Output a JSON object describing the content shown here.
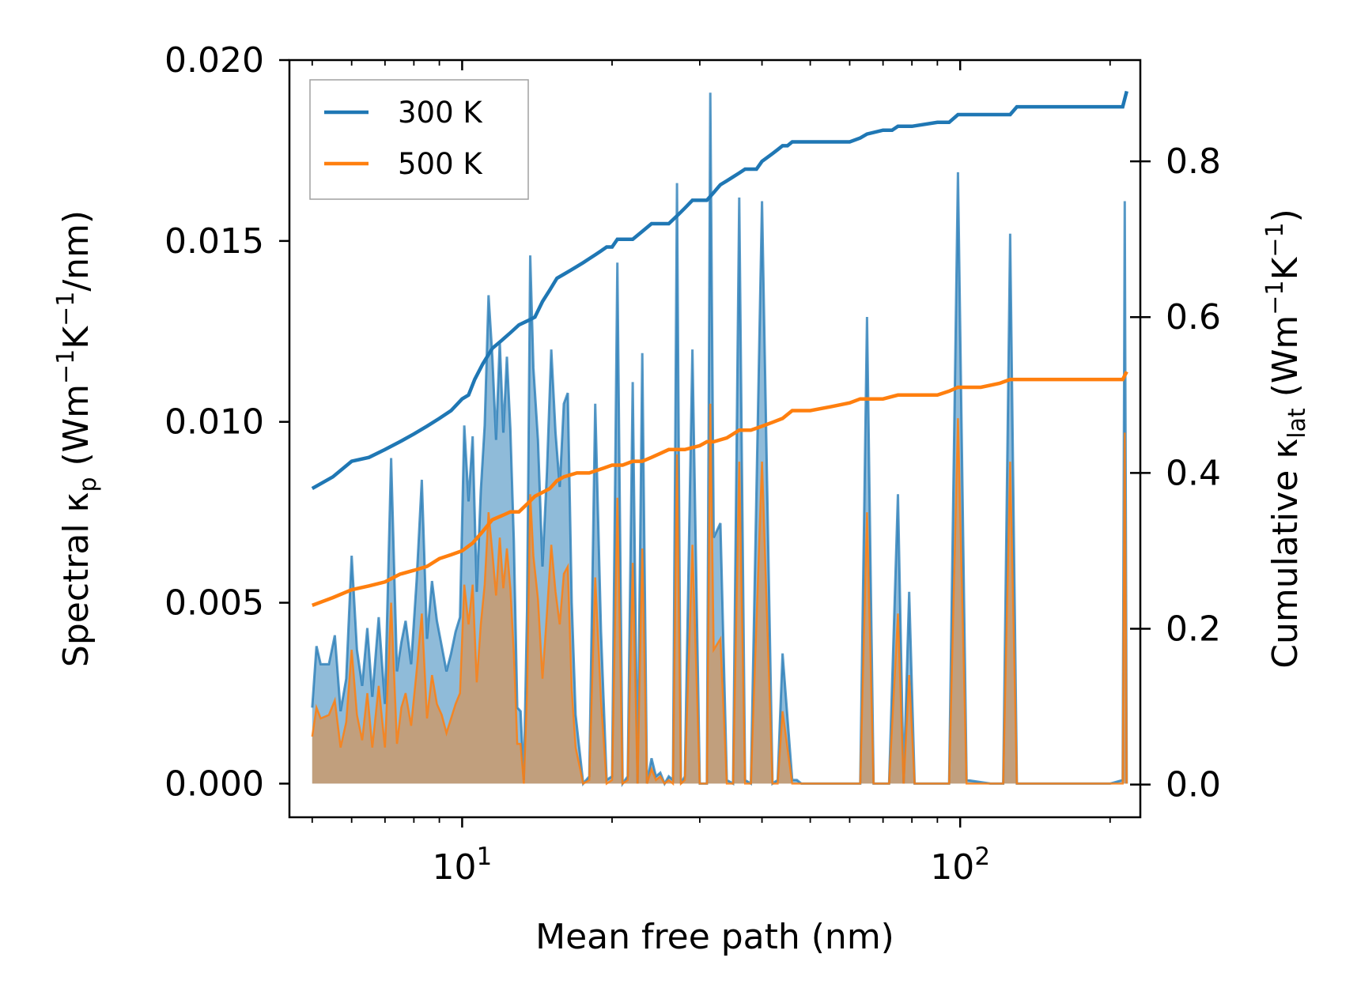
{
  "chart_data": {
    "type": "line",
    "title": "",
    "xlabel": "Mean free path (nm)",
    "xscale": "log",
    "xlim": [
      4.5,
      230
    ],
    "ylabel_left": {
      "prefix": "Spectral κ",
      "sub": "p",
      "unit_open": " (Wm",
      "exp1": "−1",
      "unit_mid": "K",
      "exp2": "−1",
      "unit_close": "/nm)"
    },
    "ylabel_right": {
      "prefix": "Cumulative κ",
      "sub": "lat",
      "unit_open": " (Wm",
      "exp1": "−1",
      "unit_mid": "K",
      "exp2": "−1",
      "unit_close": ")"
    },
    "ylim_left": [
      -0.00093,
      0.02
    ],
    "ylim_right": [
      -0.042,
      0.93
    ],
    "yticks_left": [
      "0.000",
      "0.005",
      "0.010",
      "0.015",
      "0.020"
    ],
    "yticks_left_values": [
      0,
      0.005,
      0.01,
      0.015,
      0.02
    ],
    "yticks_right": [
      "0.0",
      "0.2",
      "0.4",
      "0.6",
      "0.8"
    ],
    "yticks_right_values": [
      0,
      0.2,
      0.4,
      0.6,
      0.8
    ],
    "xticks": [
      {
        "base": "10",
        "exp": "1",
        "value": 10
      },
      {
        "base": "10",
        "exp": "2",
        "value": 100
      }
    ],
    "legend": {
      "placement": "top-left",
      "entries": [
        "300 K",
        "500 K"
      ]
    },
    "colors": {
      "c300": "#1f77b4",
      "c500": "#ff7f0e",
      "fill300": "#1f77b4",
      "fill500": "#ff7f0e"
    },
    "series": [
      {
        "name": "300 K",
        "color": "#1f77b4",
        "spectral": {
          "x": [
            5.0,
            5.1,
            5.2,
            5.4,
            5.55,
            5.7,
            5.85,
            6.0,
            6.15,
            6.3,
            6.45,
            6.6,
            6.8,
            7.0,
            7.2,
            7.4,
            7.55,
            7.7,
            7.9,
            8.1,
            8.3,
            8.5,
            8.7,
            8.9,
            9.1,
            9.3,
            9.5,
            9.7,
            9.9,
            10.1,
            10.3,
            10.5,
            10.7,
            10.9,
            11.1,
            11.3,
            11.5,
            11.7,
            11.9,
            12.1,
            12.3,
            12.5,
            12.7,
            12.9,
            13.1,
            13.3,
            13.5,
            13.7,
            13.9,
            14.2,
            14.5,
            14.8,
            15.1,
            15.4,
            15.7,
            16.0,
            16.3,
            16.6,
            16.9,
            17.5,
            18.0,
            18.5,
            19.0,
            19.5,
            20.0,
            20.5,
            21.0,
            21.5,
            22.0,
            22.5,
            23.0,
            23.5,
            24.0,
            24.5,
            25.0,
            25.5,
            26.0,
            26.5,
            27.0,
            27.5,
            28.0,
            29.0,
            30.0,
            31.0,
            31.5,
            32.0,
            33.0,
            34.0,
            35.0,
            36.0,
            37.0,
            38.0,
            40.0,
            42.0,
            43.0,
            44.0,
            46.0,
            47.0,
            48.0,
            50.0,
            55.0,
            60.0,
            63.0,
            65.0,
            67.0,
            72.0,
            75.0,
            77.0,
            79.0,
            81.0,
            90.0,
            95.0,
            99.0,
            103.0,
            115.0,
            122.0,
            126.0,
            130.0,
            150.0,
            180.0,
            200.0,
            212.0,
            214.0,
            216.0
          ],
          "values": [
            0.0021,
            0.0038,
            0.0033,
            0.0033,
            0.0041,
            0.002,
            0.0029,
            0.0063,
            0.0037,
            0.0027,
            0.0043,
            0.0024,
            0.0046,
            0.0022,
            0.009,
            0.0031,
            0.0039,
            0.0045,
            0.0033,
            0.0056,
            0.0084,
            0.004,
            0.0056,
            0.0045,
            0.0038,
            0.0031,
            0.0036,
            0.0042,
            0.0046,
            0.0099,
            0.0078,
            0.0096,
            0.0053,
            0.0081,
            0.0099,
            0.0135,
            0.0118,
            0.0095,
            0.0122,
            0.0097,
            0.0118,
            0.0098,
            0.0067,
            0.0021,
            0.002,
            0.0001,
            0.0048,
            0.0146,
            0.0115,
            0.0095,
            0.006,
            0.0086,
            0.012,
            0.0097,
            0.0082,
            0.0105,
            0.0108,
            0.005,
            0.0019,
            0.0,
            0.0002,
            0.0105,
            0.0042,
            0.0001,
            0.0002,
            0.0144,
            0.0,
            0.0002,
            0.0111,
            0.0,
            0.0119,
            0.0,
            0.0007,
            0.0002,
            0.0003,
            0.0,
            0.0002,
            0.0001,
            0.0166,
            0.0,
            0.0002,
            0.012,
            0.0,
            0.0,
            0.0191,
            0.0068,
            0.0072,
            0.0001,
            0.0,
            0.0162,
            0.0001,
            0.0,
            0.0161,
            0.0,
            0.0001,
            0.0036,
            0.0001,
            0.0001,
            0.0,
            0.0,
            0.0,
            0.0,
            0.0,
            0.0129,
            0.0,
            0.0,
            0.008,
            0.0,
            0.0053,
            0.0,
            0.0,
            0.0,
            0.0169,
            0.0001,
            0.0,
            0.0,
            0.0152,
            0.0,
            0.0,
            0.0,
            0.0,
            0.0001,
            0.0161,
            0.0
          ]
        },
        "cumulative": {
          "x": [
            5.0,
            5.5,
            6.0,
            6.5,
            7.0,
            7.5,
            8.0,
            8.5,
            9.0,
            9.5,
            10.0,
            10.3,
            10.6,
            11.0,
            11.5,
            12.0,
            12.5,
            13.0,
            13.5,
            14.0,
            14.5,
            15.0,
            15.5,
            16.0,
            16.5,
            17.0,
            17.5,
            18.0,
            18.5,
            19.0,
            19.5,
            20.0,
            20.5,
            21.0,
            22.0,
            23.0,
            24.0,
            25.0,
            26.0,
            27.0,
            28.0,
            29.0,
            30.0,
            31.0,
            32.0,
            33.0,
            34.0,
            35.0,
            36.0,
            37.0,
            38.0,
            39.0,
            40.0,
            41.0,
            42.0,
            43.0,
            44.0,
            45.0,
            46.0,
            48.0,
            50.0,
            55.0,
            60.0,
            63.0,
            65.0,
            70.0,
            73.0,
            75.0,
            80.0,
            90.0,
            95.0,
            99.0,
            110.0,
            120.0,
            126.0,
            130.0,
            150.0,
            180.0,
            200.0,
            212.0,
            216.0
          ],
          "values": [
            0.38,
            0.395,
            0.415,
            0.42,
            0.43,
            0.44,
            0.45,
            0.46,
            0.47,
            0.48,
            0.495,
            0.5,
            0.52,
            0.54,
            0.56,
            0.57,
            0.58,
            0.59,
            0.595,
            0.6,
            0.62,
            0.635,
            0.65,
            0.655,
            0.66,
            0.665,
            0.67,
            0.675,
            0.68,
            0.685,
            0.69,
            0.69,
            0.7,
            0.7,
            0.7,
            0.71,
            0.72,
            0.72,
            0.72,
            0.73,
            0.74,
            0.75,
            0.75,
            0.75,
            0.76,
            0.77,
            0.775,
            0.78,
            0.785,
            0.79,
            0.79,
            0.79,
            0.8,
            0.805,
            0.81,
            0.815,
            0.82,
            0.82,
            0.825,
            0.825,
            0.825,
            0.825,
            0.825,
            0.83,
            0.835,
            0.84,
            0.84,
            0.845,
            0.845,
            0.85,
            0.85,
            0.86,
            0.86,
            0.86,
            0.86,
            0.87,
            0.87,
            0.87,
            0.87,
            0.87,
            0.89
          ]
        }
      },
      {
        "name": "500 K",
        "color": "#ff7f0e",
        "spectral": {
          "x": [
            5.0,
            5.1,
            5.2,
            5.4,
            5.55,
            5.7,
            5.85,
            6.0,
            6.15,
            6.3,
            6.45,
            6.6,
            6.8,
            7.0,
            7.2,
            7.4,
            7.55,
            7.7,
            7.9,
            8.1,
            8.3,
            8.5,
            8.7,
            8.9,
            9.1,
            9.3,
            9.5,
            9.7,
            9.9,
            10.1,
            10.3,
            10.5,
            10.7,
            10.9,
            11.1,
            11.3,
            11.5,
            11.7,
            11.9,
            12.1,
            12.3,
            12.5,
            12.7,
            12.9,
            13.1,
            13.3,
            13.5,
            13.7,
            13.9,
            14.2,
            14.5,
            14.8,
            15.1,
            15.4,
            15.7,
            16.0,
            16.3,
            16.6,
            16.9,
            17.5,
            18.0,
            18.5,
            19.0,
            19.5,
            20.0,
            20.5,
            21.0,
            21.5,
            22.0,
            22.5,
            23.0,
            23.5,
            24.0,
            24.5,
            25.0,
            25.5,
            26.0,
            26.5,
            27.0,
            27.5,
            28.0,
            29.0,
            30.0,
            31.0,
            31.5,
            32.0,
            33.0,
            34.0,
            35.0,
            36.0,
            37.0,
            38.0,
            40.0,
            42.0,
            43.0,
            44.0,
            46.0,
            47.0,
            48.0,
            50.0,
            55.0,
            60.0,
            63.0,
            65.0,
            67.0,
            72.0,
            75.0,
            77.0,
            79.0,
            81.0,
            90.0,
            95.0,
            99.0,
            103.0,
            115.0,
            122.0,
            126.0,
            130.0,
            150.0,
            180.0,
            200.0,
            212.0,
            214.0,
            216.0
          ],
          "values": [
            0.0013,
            0.0021,
            0.0018,
            0.0019,
            0.0023,
            0.001,
            0.0017,
            0.0037,
            0.0019,
            0.0012,
            0.0025,
            0.001,
            0.0027,
            0.001,
            0.005,
            0.0011,
            0.0021,
            0.0025,
            0.0016,
            0.0031,
            0.0047,
            0.0018,
            0.003,
            0.0022,
            0.0019,
            0.0014,
            0.0018,
            0.0022,
            0.0025,
            0.0055,
            0.0044,
            0.0055,
            0.0028,
            0.0044,
            0.0055,
            0.0075,
            0.0064,
            0.0052,
            0.0068,
            0.0054,
            0.0065,
            0.0054,
            0.0036,
            0.0011,
            0.0011,
            0.0,
            0.0025,
            0.008,
            0.0063,
            0.0051,
            0.0029,
            0.0047,
            0.0066,
            0.0053,
            0.0044,
            0.0058,
            0.006,
            0.0026,
            0.001,
            0.0,
            0.0001,
            0.0057,
            0.0023,
            0.0,
            0.0001,
            0.0079,
            0.0,
            0.0001,
            0.0061,
            0.0,
            0.0065,
            0.0,
            0.0004,
            0.0001,
            0.0002,
            0.0,
            0.0001,
            0.0,
            0.0091,
            0.0,
            0.0001,
            0.0066,
            0.0,
            0.0,
            0.0105,
            0.0037,
            0.004,
            0.0,
            0.0,
            0.0089,
            0.0,
            0.0,
            0.0089,
            0.0,
            0.0,
            0.002,
            0.0,
            0.0,
            0.0,
            0.0,
            0.0,
            0.0,
            0.0,
            0.0075,
            0.0,
            0.0,
            0.0047,
            0.0,
            0.003,
            0.0,
            0.0,
            0.0,
            0.0101,
            0.0,
            0.0,
            0.0,
            0.0089,
            0.0,
            0.0,
            0.0,
            0.0,
            0.0,
            0.0097,
            0.0
          ]
        },
        "cumulative": {
          "x": [
            5.0,
            5.5,
            6.0,
            6.5,
            7.0,
            7.5,
            8.0,
            8.5,
            9.0,
            9.5,
            10.0,
            10.5,
            11.0,
            11.5,
            12.0,
            12.5,
            13.0,
            13.5,
            14.0,
            14.5,
            15.0,
            15.5,
            16.0,
            17.0,
            18.0,
            19.0,
            20.0,
            21.0,
            22.0,
            23.0,
            24.0,
            25.0,
            26.0,
            27.0,
            28.0,
            30.0,
            31.0,
            32.0,
            34.0,
            35.0,
            36.0,
            38.0,
            40.0,
            42.0,
            44.0,
            46.0,
            48.0,
            50.0,
            55.0,
            60.0,
            63.0,
            65.0,
            70.0,
            75.0,
            80.0,
            90.0,
            95.0,
            99.0,
            110.0,
            120.0,
            126.0,
            130.0,
            150.0,
            180.0,
            200.0,
            212.0,
            216.0
          ],
          "values": [
            0.23,
            0.24,
            0.25,
            0.255,
            0.26,
            0.27,
            0.275,
            0.28,
            0.29,
            0.295,
            0.3,
            0.31,
            0.325,
            0.34,
            0.345,
            0.35,
            0.35,
            0.36,
            0.37,
            0.375,
            0.38,
            0.39,
            0.395,
            0.4,
            0.4,
            0.405,
            0.41,
            0.41,
            0.415,
            0.415,
            0.42,
            0.425,
            0.43,
            0.43,
            0.43,
            0.435,
            0.44,
            0.44,
            0.445,
            0.45,
            0.455,
            0.455,
            0.46,
            0.465,
            0.47,
            0.48,
            0.48,
            0.48,
            0.485,
            0.49,
            0.495,
            0.495,
            0.495,
            0.5,
            0.5,
            0.5,
            0.505,
            0.51,
            0.51,
            0.515,
            0.52,
            0.52,
            0.52,
            0.52,
            0.52,
            0.52,
            0.53
          ]
        }
      }
    ]
  }
}
